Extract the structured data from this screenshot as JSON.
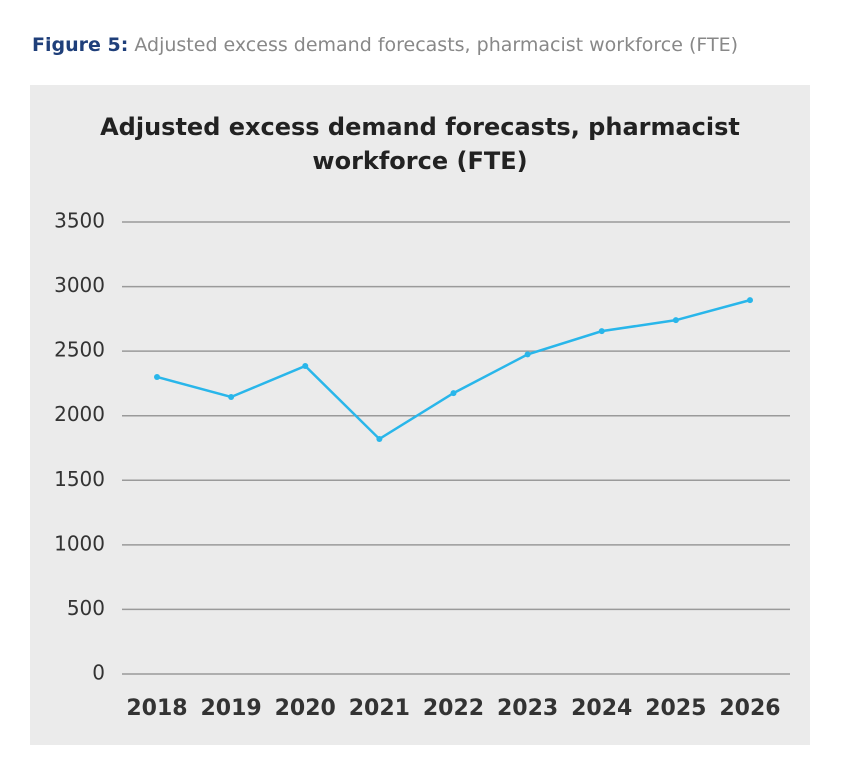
{
  "caption": {
    "label": "Figure 5:",
    "text": "Adjusted excess demand forecasts, pharmacist workforce (FTE)"
  },
  "chart_data": {
    "type": "line",
    "title": "Adjusted excess demand forecasts, pharmacist workforce (FTE)",
    "categories": [
      "2018",
      "2019",
      "2020",
      "2021",
      "2022",
      "2023",
      "2024",
      "2025",
      "2026"
    ],
    "values": [
      2300,
      2145,
      2385,
      1820,
      2175,
      2475,
      2655,
      2740,
      2895
    ],
    "color": "#29b6ea",
    "ylim": [
      0,
      3500
    ],
    "yticks": [
      0,
      500,
      1000,
      1500,
      2000,
      2500,
      3000,
      3500
    ],
    "grid": true
  }
}
